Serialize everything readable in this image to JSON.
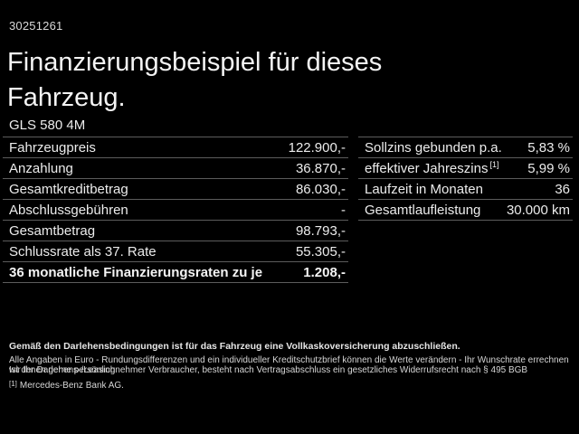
{
  "page": {
    "id_number": "30251261",
    "title_line1": "Finanzierungsbeispiel für dieses",
    "title_line2": "Fahrzeug.",
    "model": "GLS 580 4M"
  },
  "left_table": {
    "rows": [
      {
        "label": "Fahrzeugpreis",
        "value": "122.900,-"
      },
      {
        "label": "Anzahlung",
        "value": "36.870,-"
      },
      {
        "label": "Gesamtkreditbetrag",
        "value": "86.030,-"
      },
      {
        "label": "Abschlussgebühren",
        "value": "-"
      },
      {
        "label": "Gesamtbetrag",
        "value": "98.793,-"
      },
      {
        "label": "Schlussrate als 37. Rate",
        "value": "55.305,-"
      },
      {
        "label": "36 monatliche Finanzierungsraten zu je",
        "value": "1.208,-"
      }
    ]
  },
  "right_table": {
    "rows": [
      {
        "label": "Sollzins gebunden p.a.",
        "value": "5,83 %"
      },
      {
        "label": "effektiver Jahreszins",
        "sup": "[1]",
        "value": "5,99 %"
      },
      {
        "label": "Laufzeit in Monaten",
        "value": "36"
      },
      {
        "label": "Gesamtlaufleistung",
        "value": "30.000 km"
      }
    ]
  },
  "footer": {
    "bold_line": "Gemäß den Darlehensbedingungen ist für das Fahrzeug eine Vollkaskoversicherung abzuschließen.",
    "line2": "Alle Angaben in Euro - Rundungsdifferenzen und ein individueller Kreditschutzbrief können die Werte verändern - Ihr Wunschrate errechnen wir Ihnen gerne persönlich",
    "line3": "Ist der Darlehens-/Leasingnehmer Verbraucher, besteht nach Vertragsabschluss ein gesetzliches Widerrufsrecht nach § 495 BGB",
    "footnote_marker": "[1]",
    "footnote": "Mercedes-Benz Bank AG."
  },
  "colors": {
    "background": "#000000",
    "text": "#ececec",
    "divider": "#5c5c5c"
  }
}
